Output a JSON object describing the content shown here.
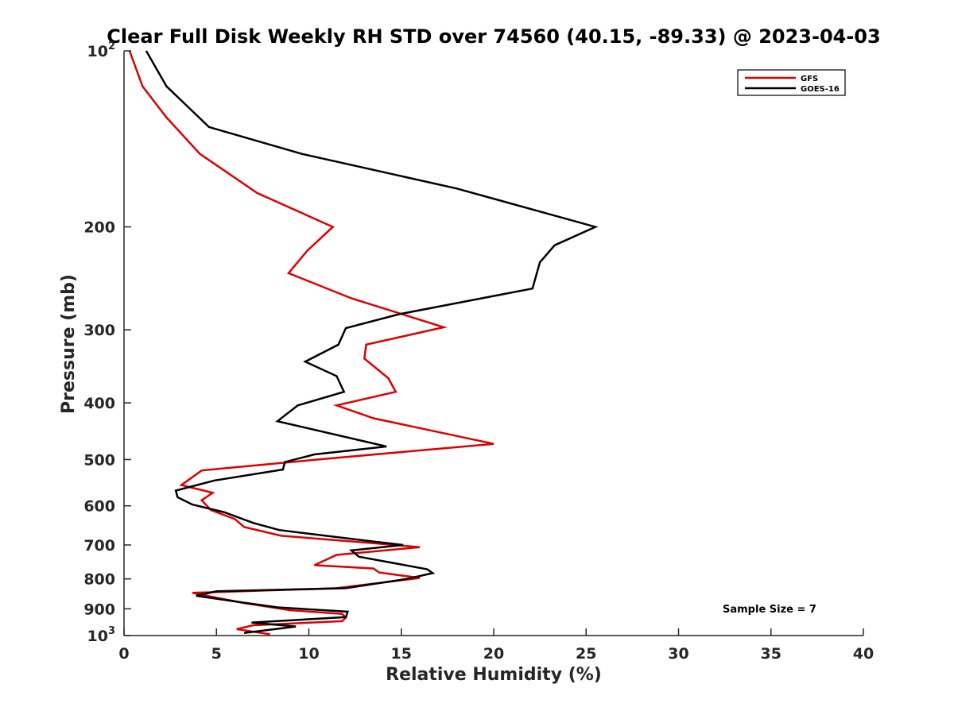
{
  "chart_data": {
    "type": "line",
    "title": "Clear Full Disk Weekly RH STD over 74560 (40.15, -89.33) @ 2023-04-03",
    "xlabel": "Relative Humidity (%)",
    "ylabel": "Pressure (mb)",
    "xlim": [
      0,
      40
    ],
    "ylim": [
      100,
      1000
    ],
    "y_scale": "log",
    "y_reversed": true,
    "x_ticks": [
      0,
      5,
      10,
      15,
      20,
      25,
      30,
      35,
      40
    ],
    "x_tick_labels": [
      "0",
      "5",
      "10",
      "15",
      "20",
      "25",
      "30",
      "35",
      "40"
    ],
    "y_ticks": [
      {
        "value": 100,
        "label": "10",
        "exp": "2"
      },
      {
        "value": 200,
        "label": "200"
      },
      {
        "value": 300,
        "label": "300"
      },
      {
        "value": 400,
        "label": "400"
      },
      {
        "value": 500,
        "label": "500"
      },
      {
        "value": 600,
        "label": "600"
      },
      {
        "value": 700,
        "label": "700"
      },
      {
        "value": 800,
        "label": "800"
      },
      {
        "value": 900,
        "label": "900"
      },
      {
        "value": 1000,
        "label": "10",
        "exp": "3"
      }
    ],
    "grid": false,
    "legend_position": "top-right",
    "annotation": "Sample Size = 7",
    "series": [
      {
        "name": "GFS",
        "color": "#dd0000",
        "points": [
          [
            0.3,
            100
          ],
          [
            1.0,
            115
          ],
          [
            2.3,
            130
          ],
          [
            4.1,
            150
          ],
          [
            7.2,
            175
          ],
          [
            11.3,
            200
          ],
          [
            9.9,
            220
          ],
          [
            8.9,
            240
          ],
          [
            12.3,
            265
          ],
          [
            17.3,
            297
          ],
          [
            13.1,
            318
          ],
          [
            13.0,
            336
          ],
          [
            14.3,
            363
          ],
          [
            14.7,
            383
          ],
          [
            11.5,
            404
          ],
          [
            13.5,
            425
          ],
          [
            20.0,
            470
          ],
          [
            10.5,
            500
          ],
          [
            4.2,
            522
          ],
          [
            3.1,
            553
          ],
          [
            4.8,
            570
          ],
          [
            4.2,
            587
          ],
          [
            4.7,
            610
          ],
          [
            6.0,
            632
          ],
          [
            6.5,
            652
          ],
          [
            8.5,
            675
          ],
          [
            13.5,
            695
          ],
          [
            16.0,
            706
          ],
          [
            11.5,
            728
          ],
          [
            10.3,
            758
          ],
          [
            13.5,
            768
          ],
          [
            13.8,
            780
          ],
          [
            16.0,
            797
          ],
          [
            11.5,
            830
          ],
          [
            3.7,
            845
          ],
          [
            4.9,
            860
          ],
          [
            6.5,
            880
          ],
          [
            9.0,
            905
          ],
          [
            11.8,
            918
          ],
          [
            12.0,
            932
          ],
          [
            11.8,
            945
          ],
          [
            7.0,
            960
          ],
          [
            6.1,
            975
          ],
          [
            7.0,
            985
          ],
          [
            7.9,
            995
          ]
        ]
      },
      {
        "name": "GOES-16",
        "color": "#000000",
        "points": [
          [
            1.2,
            100
          ],
          [
            2.3,
            115
          ],
          [
            4.6,
            135
          ],
          [
            9.6,
            150
          ],
          [
            18.0,
            172
          ],
          [
            25.5,
            200
          ],
          [
            23.3,
            215
          ],
          [
            22.5,
            230
          ],
          [
            22.1,
            255
          ],
          [
            14.9,
            282
          ],
          [
            12.0,
            298
          ],
          [
            11.6,
            318
          ],
          [
            9.8,
            340
          ],
          [
            11.5,
            360
          ],
          [
            11.9,
            383
          ],
          [
            9.4,
            404
          ],
          [
            8.3,
            430
          ],
          [
            14.2,
            475
          ],
          [
            10.3,
            490
          ],
          [
            8.7,
            505
          ],
          [
            8.6,
            520
          ],
          [
            4.9,
            543
          ],
          [
            2.8,
            565
          ],
          [
            2.9,
            580
          ],
          [
            3.7,
            597
          ],
          [
            5.4,
            615
          ],
          [
            7.0,
            642
          ],
          [
            8.4,
            660
          ],
          [
            13.4,
            690
          ],
          [
            15.1,
            700
          ],
          [
            12.3,
            715
          ],
          [
            12.7,
            733
          ],
          [
            16.4,
            770
          ],
          [
            16.7,
            782
          ],
          [
            15.3,
            800
          ],
          [
            12.0,
            830
          ],
          [
            5.0,
            840
          ],
          [
            3.9,
            855
          ],
          [
            6.3,
            877
          ],
          [
            8.3,
            895
          ],
          [
            12.1,
            910
          ],
          [
            12.0,
            930
          ],
          [
            6.9,
            950
          ],
          [
            9.3,
            965
          ],
          [
            6.5,
            990
          ]
        ]
      }
    ]
  }
}
